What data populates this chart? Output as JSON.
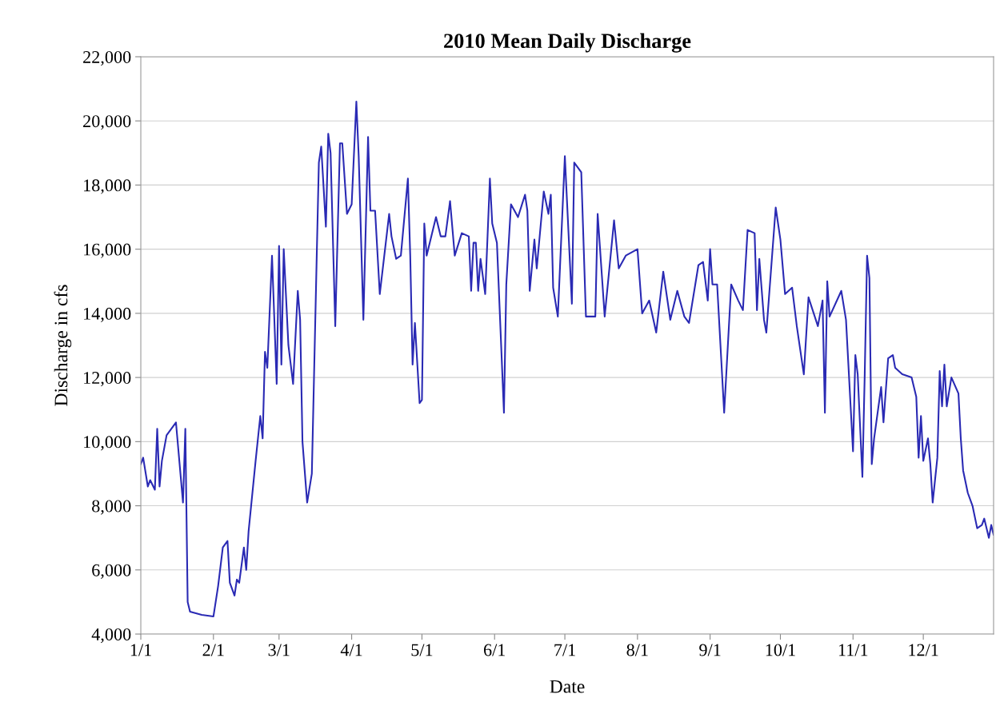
{
  "chart_data": {
    "type": "line",
    "title": "2010 Mean Daily Discharge",
    "xlabel": "Date",
    "ylabel": "Discharge in cfs",
    "x": [
      "2010-01-01",
      "2010-01-02",
      "2010-01-04",
      "2010-01-05",
      "2010-01-07",
      "2010-01-08",
      "2010-01-09",
      "2010-01-10",
      "2010-01-12",
      "2010-01-14",
      "2010-01-16",
      "2010-01-19",
      "2010-01-20",
      "2010-01-21",
      "2010-01-22",
      "2010-01-27",
      "2010-02-01",
      "2010-02-03",
      "2010-02-05",
      "2010-02-07",
      "2010-02-08",
      "2010-02-10",
      "2010-02-11",
      "2010-02-12",
      "2010-02-14",
      "2010-02-15",
      "2010-02-16",
      "2010-02-19",
      "2010-02-21",
      "2010-02-22",
      "2010-02-23",
      "2010-02-24",
      "2010-02-26",
      "2010-02-28",
      "2010-03-01",
      "2010-03-02",
      "2010-03-03",
      "2010-03-05",
      "2010-03-07",
      "2010-03-09",
      "2010-03-10",
      "2010-03-11",
      "2010-03-13",
      "2010-03-15",
      "2010-03-17",
      "2010-03-18",
      "2010-03-19",
      "2010-03-21",
      "2010-03-22",
      "2010-03-23",
      "2010-03-25",
      "2010-03-27",
      "2010-03-28",
      "2010-03-30",
      "2010-04-01",
      "2010-04-03",
      "2010-04-04",
      "2010-04-06",
      "2010-04-08",
      "2010-04-09",
      "2010-04-11",
      "2010-04-13",
      "2010-04-17",
      "2010-04-18",
      "2010-04-20",
      "2010-04-22",
      "2010-04-25",
      "2010-04-26",
      "2010-04-27",
      "2010-04-28",
      "2010-04-30",
      "2010-05-01",
      "2010-05-02",
      "2010-05-03",
      "2010-05-07",
      "2010-05-09",
      "2010-05-11",
      "2010-05-13",
      "2010-05-15",
      "2010-05-18",
      "2010-05-21",
      "2010-05-22",
      "2010-05-23",
      "2010-05-24",
      "2010-05-25",
      "2010-05-26",
      "2010-05-28",
      "2010-05-30",
      "2010-05-31",
      "2010-06-02",
      "2010-06-05",
      "2010-06-06",
      "2010-06-08",
      "2010-06-11",
      "2010-06-14",
      "2010-06-15",
      "2010-06-16",
      "2010-06-18",
      "2010-06-19",
      "2010-06-22",
      "2010-06-24",
      "2010-06-25",
      "2010-06-26",
      "2010-06-28",
      "2010-07-01",
      "2010-07-04",
      "2010-07-05",
      "2010-07-08",
      "2010-07-10",
      "2010-07-14",
      "2010-07-15",
      "2010-07-18",
      "2010-07-22",
      "2010-07-24",
      "2010-07-27",
      "2010-08-01",
      "2010-08-03",
      "2010-08-06",
      "2010-08-09",
      "2010-08-12",
      "2010-08-15",
      "2010-08-18",
      "2010-08-21",
      "2010-08-23",
      "2010-08-27",
      "2010-08-29",
      "2010-08-31",
      "2010-09-01",
      "2010-09-02",
      "2010-09-04",
      "2010-09-07",
      "2010-09-10",
      "2010-09-13",
      "2010-09-15",
      "2010-09-17",
      "2010-09-20",
      "2010-09-21",
      "2010-09-22",
      "2010-09-24",
      "2010-09-25",
      "2010-09-29",
      "2010-10-01",
      "2010-10-03",
      "2010-10-06",
      "2010-10-08",
      "2010-10-11",
      "2010-10-13",
      "2010-10-17",
      "2010-10-19",
      "2010-10-20",
      "2010-10-21",
      "2010-10-22",
      "2010-10-27",
      "2010-10-29",
      "2010-11-01",
      "2010-11-02",
      "2010-11-03",
      "2010-11-05",
      "2010-11-06",
      "2010-11-07",
      "2010-11-08",
      "2010-11-09",
      "2010-11-10",
      "2010-11-13",
      "2010-11-14",
      "2010-11-16",
      "2010-11-18",
      "2010-11-19",
      "2010-11-22",
      "2010-11-26",
      "2010-11-28",
      "2010-11-29",
      "2010-11-30",
      "2010-12-01",
      "2010-12-03",
      "2010-12-04",
      "2010-12-05",
      "2010-12-07",
      "2010-12-08",
      "2010-12-09",
      "2010-12-10",
      "2010-12-11",
      "2010-12-13",
      "2010-12-16",
      "2010-12-17",
      "2010-12-18",
      "2010-12-20",
      "2010-12-22",
      "2010-12-24",
      "2010-12-26",
      "2010-12-27",
      "2010-12-29",
      "2010-12-30",
      "2010-12-31"
    ],
    "series": [
      {
        "color": "#2a2ab4",
        "values": [
          9300,
          9500,
          8600,
          8800,
          8500,
          10400,
          8600,
          9400,
          10200,
          10400,
          10600,
          8100,
          10400,
          5000,
          4700,
          4600,
          4550,
          5500,
          6700,
          6900,
          5600,
          5200,
          5700,
          5600,
          6700,
          6000,
          7200,
          9400,
          10800,
          10100,
          12800,
          12300,
          15800,
          11800,
          16100,
          12400,
          16000,
          13000,
          11800,
          14700,
          13800,
          10000,
          8100,
          9000,
          15500,
          18700,
          19200,
          16700,
          19600,
          19000,
          13600,
          19300,
          19300,
          17100,
          17400,
          20600,
          18900,
          13800,
          19500,
          17200,
          17200,
          14600,
          17100,
          16400,
          15700,
          15800,
          18200,
          15800,
          12400,
          13700,
          11200,
          11300,
          16800,
          15800,
          17000,
          16400,
          16400,
          17500,
          15800,
          16500,
          16400,
          14700,
          16200,
          16200,
          14700,
          15700,
          14600,
          18200,
          16800,
          16200,
          10900,
          14900,
          17400,
          17000,
          17700,
          17200,
          14700,
          16300,
          15400,
          17800,
          17100,
          17700,
          14800,
          13900,
          18900,
          14300,
          18700,
          18400,
          13900,
          13900,
          17100,
          13900,
          16900,
          15400,
          15800,
          16000,
          14000,
          14400,
          13400,
          15300,
          13800,
          14700,
          13900,
          13700,
          15500,
          15600,
          14400,
          16000,
          14900,
          14900,
          10900,
          14900,
          14400,
          14100,
          16600,
          16500,
          14100,
          15700,
          13800,
          13400,
          17300,
          16300,
          14600,
          14800,
          13600,
          12100,
          14500,
          13600,
          14400,
          10900,
          15000,
          13900,
          14700,
          13800,
          9700,
          12700,
          12100,
          8900,
          12100,
          15800,
          15100,
          9300,
          10100,
          11700,
          10600,
          12600,
          12700,
          12300,
          12100,
          12000,
          11400,
          9500,
          10800,
          9400,
          10100,
          9300,
          8100,
          9500,
          12200,
          11100,
          12400,
          11100,
          12000,
          11500,
          10100,
          9100,
          8400,
          8000,
          7300,
          7400,
          7600,
          7000,
          7400,
          7100
        ]
      }
    ],
    "xlim": [
      "2010-01-01",
      "2010-12-31"
    ],
    "xticks": [
      {
        "value": "2010-01-01",
        "label": "1/1"
      },
      {
        "value": "2010-02-01",
        "label": "2/1"
      },
      {
        "value": "2010-03-01",
        "label": "3/1"
      },
      {
        "value": "2010-04-01",
        "label": "4/1"
      },
      {
        "value": "2010-05-01",
        "label": "5/1"
      },
      {
        "value": "2010-06-01",
        "label": "6/1"
      },
      {
        "value": "2010-07-01",
        "label": "7/1"
      },
      {
        "value": "2010-08-01",
        "label": "8/1"
      },
      {
        "value": "2010-09-01",
        "label": "9/1"
      },
      {
        "value": "2010-10-01",
        "label": "10/1"
      },
      {
        "value": "2010-11-01",
        "label": "11/1"
      },
      {
        "value": "2010-12-01",
        "label": "12/1"
      }
    ],
    "ylim": [
      4000,
      22000
    ],
    "yticks": [
      {
        "value": 4000,
        "label": "4,000"
      },
      {
        "value": 6000,
        "label": "6,000"
      },
      {
        "value": 8000,
        "label": "8,000"
      },
      {
        "value": 10000,
        "label": "10,000"
      },
      {
        "value": 12000,
        "label": "12,000"
      },
      {
        "value": 14000,
        "label": "14,000"
      },
      {
        "value": 16000,
        "label": "16,000"
      },
      {
        "value": 18000,
        "label": "18,000"
      },
      {
        "value": 20000,
        "label": "20,000"
      },
      {
        "value": 22000,
        "label": "22,000"
      }
    ],
    "grid": "y",
    "line_style": "solid"
  }
}
